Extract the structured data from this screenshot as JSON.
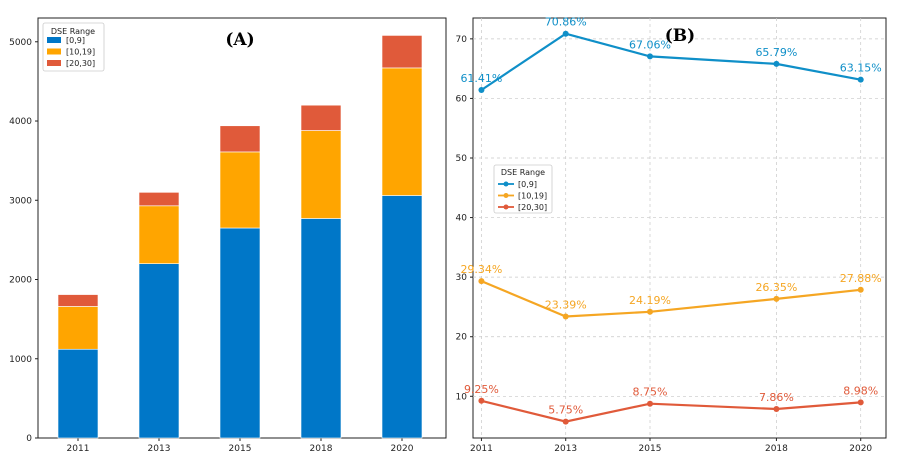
{
  "chart_data": [
    {
      "type": "bar",
      "stacked": true,
      "panel_label": "(A)",
      "categories": [
        "2011",
        "2013",
        "2015",
        "2018",
        "2020"
      ],
      "series": [
        {
          "name": "[0,9]",
          "color": "#0077C8",
          "values": [
            1120,
            2200,
            2650,
            2770,
            3060
          ]
        },
        {
          "name": "[10,19]",
          "color": "#FFA500",
          "values": [
            540,
            730,
            960,
            1110,
            1610
          ]
        },
        {
          "name": "[20,30]",
          "color": "#E05A3A",
          "values": [
            150,
            170,
            330,
            320,
            410
          ]
        }
      ],
      "legend_title": "DSE Range",
      "legend_position": "top-left",
      "ylim": [
        0,
        5300
      ],
      "yticks": [
        0,
        1000,
        2000,
        3000,
        4000,
        5000
      ]
    },
    {
      "type": "line",
      "panel_label": "(B)",
      "categories": [
        "2011",
        "2013",
        "2015",
        "2018",
        "2020"
      ],
      "x": [
        2011,
        2013,
        2015,
        2018,
        2020
      ],
      "series": [
        {
          "name": "[0,9]",
          "color": "#0F8FC8",
          "values": [
            61.41,
            70.86,
            67.06,
            65.79,
            63.15
          ],
          "labels": [
            "61.41%",
            "70.86%",
            "67.06%",
            "65.79%",
            "63.15%"
          ]
        },
        {
          "name": "[10,19]",
          "color": "#F5A623",
          "values": [
            29.34,
            23.39,
            24.19,
            26.35,
            27.88
          ],
          "labels": [
            "29.34%",
            "23.39%",
            "24.19%",
            "26.35%",
            "27.88%"
          ]
        },
        {
          "name": "[20,30]",
          "color": "#E05A3A",
          "values": [
            9.25,
            5.75,
            8.75,
            7.86,
            8.98
          ],
          "labels": [
            "9.25%",
            "5.75%",
            "8.75%",
            "7.86%",
            "8.98%"
          ]
        }
      ],
      "legend_title": "DSE Range",
      "legend_position": "center-left",
      "grid": true,
      "ylim": [
        3,
        73.5
      ],
      "yticks": [
        10,
        20,
        30,
        40,
        50,
        60,
        70
      ]
    }
  ]
}
